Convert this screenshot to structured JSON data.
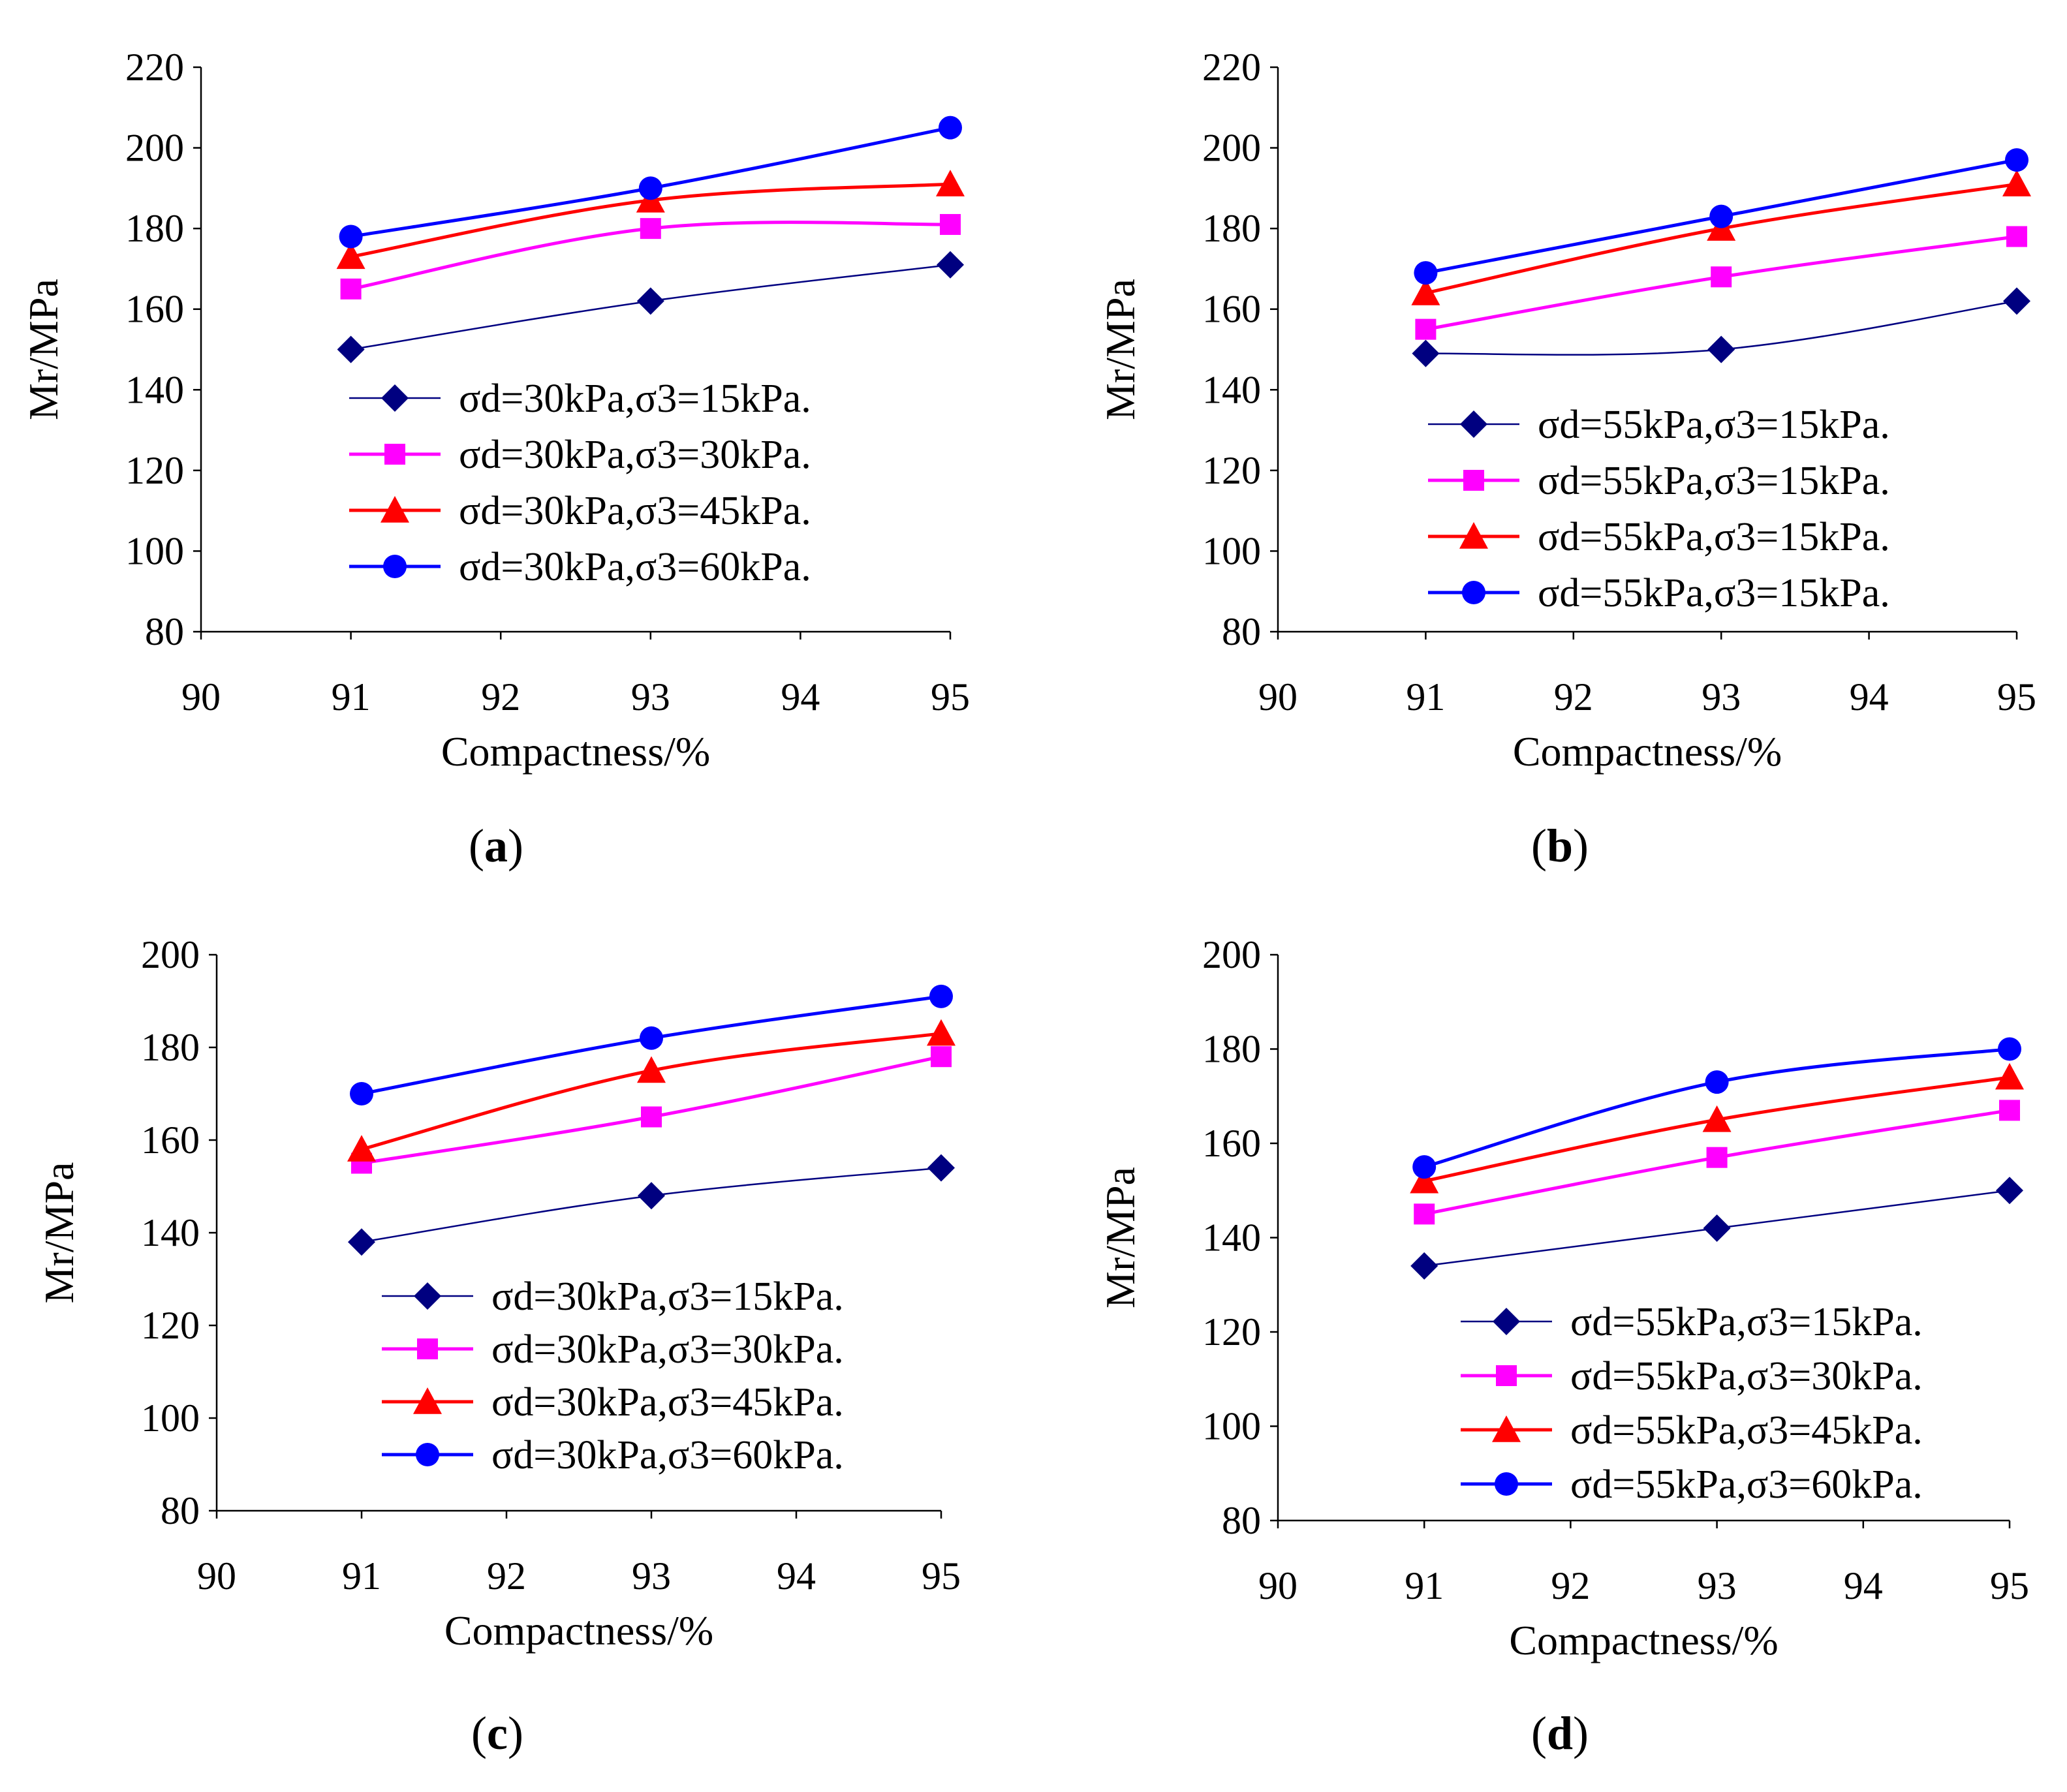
{
  "chart_data": [
    {
      "type": "line",
      "panel": "a",
      "caption_label": "a",
      "xlabel": "Compactness/%",
      "ylabel": "Mr/MPa",
      "xlim": [
        90,
        95
      ],
      "ylim": [
        80,
        220
      ],
      "xticks": [
        "90",
        "91",
        "92",
        "93",
        "94",
        "95"
      ],
      "yticks": [
        "80",
        "100",
        "120",
        "140",
        "160",
        "180",
        "200",
        "220"
      ],
      "x": [
        91,
        93,
        95
      ],
      "series": [
        {
          "name": "σd=30kPa,σ3=15kPa.",
          "values": [
            150,
            162,
            171
          ],
          "color": "#000080",
          "marker": "diamond"
        },
        {
          "name": "σd=30kPa,σ3=30kPa.",
          "values": [
            165,
            180,
            181
          ],
          "color": "#ff00ff",
          "marker": "square"
        },
        {
          "name": "σd=30kPa,σ3=45kPa.",
          "values": [
            173,
            187,
            191
          ],
          "color": "#ff0000",
          "marker": "triangle"
        },
        {
          "name": "σd=30kPa,σ3=60kPa.",
          "values": [
            178,
            190,
            205
          ],
          "color": "#0000ff",
          "marker": "circle"
        }
      ],
      "legend_position": "center"
    },
    {
      "type": "line",
      "panel": "b",
      "caption_label": "b",
      "xlabel": "Compactness/%",
      "ylabel": "Mr/MPa",
      "xlim": [
        90,
        95
      ],
      "ylim": [
        80,
        220
      ],
      "xticks": [
        "90",
        "91",
        "92",
        "93",
        "94",
        "95"
      ],
      "yticks": [
        "80",
        "100",
        "120",
        "140",
        "160",
        "180",
        "200",
        "220"
      ],
      "x": [
        91,
        93,
        95
      ],
      "series": [
        {
          "name": "σd=55kPa,σ3=15kPa.",
          "values": [
            149,
            150,
            162
          ],
          "color": "#000080",
          "marker": "diamond"
        },
        {
          "name": "σd=55kPa,σ3=15kPa.",
          "values": [
            155,
            168,
            178
          ],
          "color": "#ff00ff",
          "marker": "square"
        },
        {
          "name": "σd=55kPa,σ3=15kPa.",
          "values": [
            164,
            180,
            191
          ],
          "color": "#ff0000",
          "marker": "triangle"
        },
        {
          "name": "σd=55kPa,σ3=15kPa.",
          "values": [
            169,
            183,
            197
          ],
          "color": "#0000ff",
          "marker": "circle"
        }
      ],
      "legend_position": "center"
    },
    {
      "type": "line",
      "panel": "c",
      "caption_label": "c",
      "xlabel": "Compactness/%",
      "ylabel": "Mr/MPa",
      "xlim": [
        90,
        95
      ],
      "ylim": [
        80,
        200
      ],
      "xticks": [
        "90",
        "91",
        "92",
        "93",
        "94",
        "95"
      ],
      "yticks": [
        "80",
        "100",
        "120",
        "140",
        "160",
        "180",
        "200"
      ],
      "x": [
        91,
        93,
        95
      ],
      "series": [
        {
          "name": "σd=30kPa,σ3=15kPa.",
          "values": [
            138,
            148,
            154
          ],
          "color": "#000080",
          "marker": "diamond"
        },
        {
          "name": "σd=30kPa,σ3=30kPa.",
          "values": [
            155,
            165,
            178
          ],
          "color": "#ff00ff",
          "marker": "square"
        },
        {
          "name": "σd=30kPa,σ3=45kPa.",
          "values": [
            158,
            175,
            183
          ],
          "color": "#ff0000",
          "marker": "triangle"
        },
        {
          "name": "σd=30kPa,σ3=60kPa.",
          "values": [
            170,
            182,
            191
          ],
          "color": "#0000ff",
          "marker": "circle"
        }
      ],
      "legend_position": "center-bottom"
    },
    {
      "type": "line",
      "panel": "d",
      "caption_label": "d",
      "xlabel": "Compactness/%",
      "ylabel": "Mr/MPa",
      "xlim": [
        90,
        95
      ],
      "ylim": [
        80,
        200
      ],
      "xticks": [
        "90",
        "91",
        "92",
        "93",
        "94",
        "95"
      ],
      "yticks": [
        "80",
        "100",
        "120",
        "140",
        "160",
        "180",
        "200"
      ],
      "x": [
        91,
        93,
        95
      ],
      "series": [
        {
          "name": "σd=55kPa,σ3=15kPa.",
          "values": [
            134,
            142,
            150
          ],
          "color": "#000080",
          "marker": "diamond"
        },
        {
          "name": "σd=55kPa,σ3=30kPa.",
          "values": [
            145,
            157,
            167
          ],
          "color": "#ff00ff",
          "marker": "square"
        },
        {
          "name": "σd=55kPa,σ3=45kPa.",
          "values": [
            152,
            165,
            174
          ],
          "color": "#ff0000",
          "marker": "triangle"
        },
        {
          "name": "σd=55kPa,σ3=60kPa.",
          "values": [
            155,
            173,
            180
          ],
          "color": "#0000ff",
          "marker": "circle"
        }
      ],
      "legend_position": "center-bottom"
    }
  ]
}
